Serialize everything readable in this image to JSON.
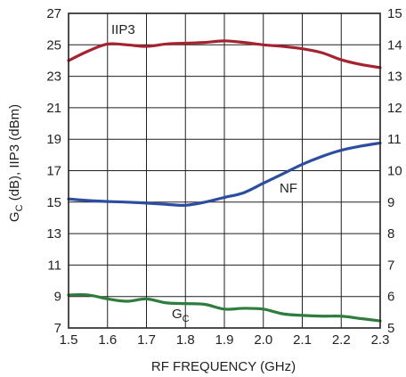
{
  "chart_data": {
    "type": "line",
    "xlabel": "RF FREQUENCY (GHz)",
    "ylabel_left_main": "G",
    "ylabel_left_sub": "C",
    "ylabel_left_rest": " (dB), IIP3 (dBm)",
    "xlim": [
      1.5,
      2.3
    ],
    "ylim_left": [
      7,
      27
    ],
    "ylim_right": [
      5,
      15
    ],
    "x_ticks": [
      "1.5",
      "1.6",
      "1.7",
      "1.8",
      "1.9",
      "2.0",
      "2.1",
      "2.2",
      "2.3"
    ],
    "x_tick_values": [
      1.5,
      1.6,
      1.7,
      1.8,
      1.9,
      2.0,
      2.1,
      2.2,
      2.3
    ],
    "y_left_ticks": [
      "7",
      "9",
      "11",
      "13",
      "15",
      "17",
      "19",
      "21",
      "23",
      "25",
      "27"
    ],
    "y_left_tick_values": [
      7,
      9,
      11,
      13,
      15,
      17,
      19,
      21,
      23,
      25,
      27
    ],
    "y_right_ticks": [
      "5",
      "6",
      "7",
      "8",
      "9",
      "10",
      "11",
      "12",
      "13",
      "14",
      "15"
    ],
    "y_right_tick_values": [
      5,
      6,
      7,
      8,
      9,
      10,
      11,
      12,
      13,
      14,
      15
    ],
    "grid": true,
    "series": [
      {
        "name": "IIP3",
        "axis": "left",
        "color": "#a4232f",
        "x": [
          1.5,
          1.55,
          1.6,
          1.65,
          1.7,
          1.75,
          1.8,
          1.85,
          1.9,
          1.95,
          2.0,
          2.05,
          2.1,
          2.15,
          2.2,
          2.25,
          2.3
        ],
        "y": [
          24.0,
          24.6,
          25.05,
          25.0,
          24.9,
          25.05,
          25.1,
          25.15,
          25.25,
          25.15,
          25.0,
          24.9,
          24.75,
          24.5,
          24.05,
          23.75,
          23.55
        ]
      },
      {
        "name": "NF",
        "axis": "right",
        "color": "#2c4da0",
        "x": [
          1.5,
          1.55,
          1.6,
          1.65,
          1.7,
          1.75,
          1.8,
          1.85,
          1.9,
          1.95,
          2.0,
          2.05,
          2.1,
          2.15,
          2.2,
          2.25,
          2.3
        ],
        "y": [
          9.1,
          9.05,
          9.02,
          9.0,
          8.97,
          8.93,
          8.9,
          9.0,
          9.15,
          9.3,
          9.6,
          9.9,
          10.2,
          10.45,
          10.65,
          10.78,
          10.88
        ]
      },
      {
        "name_main": "G",
        "name_sub": "C",
        "axis": "left",
        "color": "#2e7d3e",
        "x": [
          1.5,
          1.55,
          1.6,
          1.65,
          1.7,
          1.75,
          1.8,
          1.85,
          1.9,
          1.95,
          2.0,
          2.05,
          2.1,
          2.15,
          2.2,
          2.25,
          2.3
        ],
        "y": [
          9.1,
          9.1,
          8.85,
          8.7,
          8.85,
          8.6,
          8.55,
          8.5,
          8.2,
          8.25,
          8.2,
          7.9,
          7.8,
          7.75,
          7.75,
          7.6,
          7.45
        ]
      }
    ]
  }
}
